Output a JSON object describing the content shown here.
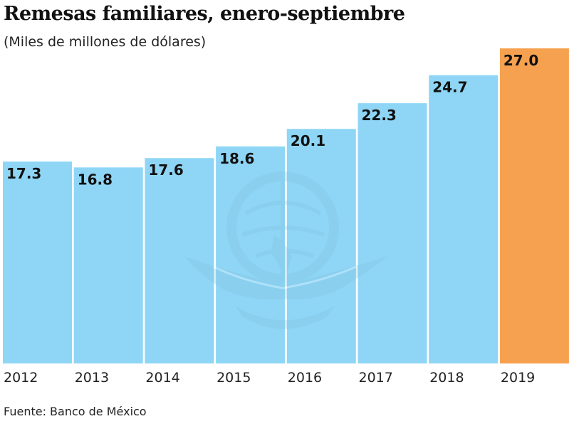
{
  "title": "Remesas familiares, enero-septiembre",
  "subtitle": "(Miles de millones de dólares)",
  "source": "Fuente: Banco de México",
  "colors": {
    "bar": "#8fd6f6",
    "highlight": "#f6a14f",
    "watermark": "#7fbfdc"
  },
  "watermark_icon": "eagle-globe-logo",
  "chart_data": {
    "type": "bar",
    "title": "Remesas familiares, enero-septiembre",
    "subtitle": "(Miles de millones de dólares)",
    "categories": [
      "2012",
      "2013",
      "2014",
      "2015",
      "2016",
      "2017",
      "2018",
      "2019"
    ],
    "values": [
      17.3,
      16.8,
      17.6,
      18.6,
      20.1,
      22.3,
      24.7,
      27.0
    ],
    "value_labels": [
      "17.3",
      "16.8",
      "17.6",
      "18.6",
      "20.1",
      "22.3",
      "24.7",
      "27.0"
    ],
    "highlight_category": "2019",
    "xlabel": "",
    "ylabel": "",
    "ylim": [
      0,
      27.0
    ],
    "grid": false,
    "legend": "none"
  }
}
